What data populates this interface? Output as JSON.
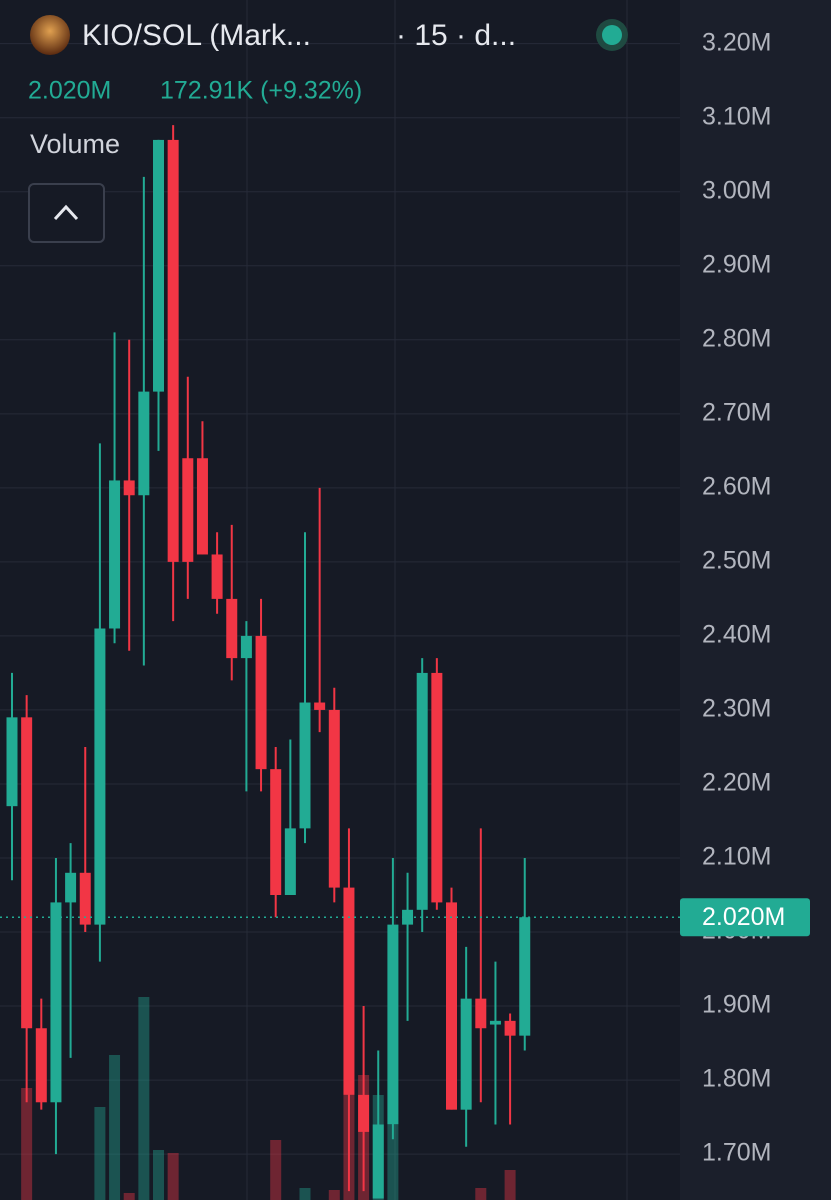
{
  "header": {
    "symbol": "KIO/SOL (Mark...",
    "interval": "· 15 · d...",
    "price": "2.020M",
    "change": "172.91K (+9.32%)"
  },
  "volume_label": "Volume",
  "chart_data": {
    "type": "candlestick",
    "ylim": [
      1.638,
      3.259
    ],
    "yticks": [
      {
        "value": 1.7,
        "label": "1.70M"
      },
      {
        "value": 1.8,
        "label": "1.80M"
      },
      {
        "value": 1.9,
        "label": "1.90M"
      },
      {
        "value": 2.0,
        "label": "2.00M"
      },
      {
        "value": 2.1,
        "label": "2.10M"
      },
      {
        "value": 2.2,
        "label": "2.20M"
      },
      {
        "value": 2.3,
        "label": "2.30M"
      },
      {
        "value": 2.4,
        "label": "2.40M"
      },
      {
        "value": 2.5,
        "label": "2.50M"
      },
      {
        "value": 2.6,
        "label": "2.60M"
      },
      {
        "value": 2.7,
        "label": "2.70M"
      },
      {
        "value": 2.8,
        "label": "2.80M"
      },
      {
        "value": 2.9,
        "label": "2.90M"
      },
      {
        "value": 3.0,
        "label": "3.00M"
      },
      {
        "value": 3.1,
        "label": "3.10M"
      },
      {
        "value": 3.2,
        "label": "3.20M"
      }
    ],
    "grid": true,
    "up_color": "#22ab94",
    "down_color": "#f23645",
    "last_price": {
      "value": 2.02,
      "label": "2.020M"
    },
    "open": [
      2.17,
      2.29,
      1.87,
      1.77,
      2.04,
      2.08,
      2.01,
      2.41,
      2.61,
      2.59,
      2.73,
      3.07,
      2.64,
      2.64,
      2.51,
      2.45,
      2.37,
      2.4,
      2.22,
      2.05,
      2.14,
      2.31,
      2.3,
      2.06,
      1.78,
      1.64,
      1.74,
      2.01,
      2.03,
      2.35,
      2.04,
      1.76,
      1.91,
      1.875,
      1.88,
      1.86
    ],
    "high": [
      2.35,
      2.32,
      1.91,
      2.1,
      2.12,
      2.25,
      2.66,
      2.81,
      2.8,
      3.02,
      3.07,
      3.09,
      2.75,
      2.69,
      2.54,
      2.55,
      2.42,
      2.45,
      2.25,
      2.26,
      2.54,
      2.6,
      2.33,
      2.14,
      1.9,
      1.84,
      2.1,
      2.08,
      2.37,
      2.37,
      2.06,
      1.98,
      2.14,
      1.96,
      1.89,
      2.1
    ],
    "low": [
      2.07,
      1.77,
      1.76,
      1.7,
      1.83,
      2.0,
      1.96,
      2.39,
      2.38,
      2.36,
      2.65,
      2.42,
      2.45,
      2.51,
      2.43,
      2.34,
      2.19,
      2.19,
      2.02,
      2.05,
      2.12,
      2.27,
      2.04,
      1.65,
      1.65,
      1.64,
      1.72,
      1.88,
      2.0,
      2.03,
      1.76,
      1.71,
      1.77,
      1.74,
      1.74,
      1.84
    ],
    "close": [
      2.29,
      1.87,
      1.77,
      2.04,
      2.08,
      2.01,
      2.41,
      2.61,
      2.59,
      2.73,
      3.07,
      2.5,
      2.5,
      2.51,
      2.45,
      2.37,
      2.4,
      2.22,
      2.05,
      2.14,
      2.31,
      2.3,
      2.06,
      1.78,
      1.73,
      1.74,
      2.01,
      2.03,
      2.35,
      2.04,
      1.76,
      1.91,
      1.87,
      1.88,
      1.86,
      2.02
    ],
    "volume": [
      0,
      112,
      0,
      0,
      0,
      0,
      93,
      145,
      7,
      203,
      50,
      47,
      0,
      0,
      0,
      0,
      0,
      0,
      60,
      0,
      12,
      0,
      10,
      105,
      125,
      105,
      75,
      0,
      0,
      0,
      0,
      0,
      12,
      0,
      30,
      0
    ]
  }
}
